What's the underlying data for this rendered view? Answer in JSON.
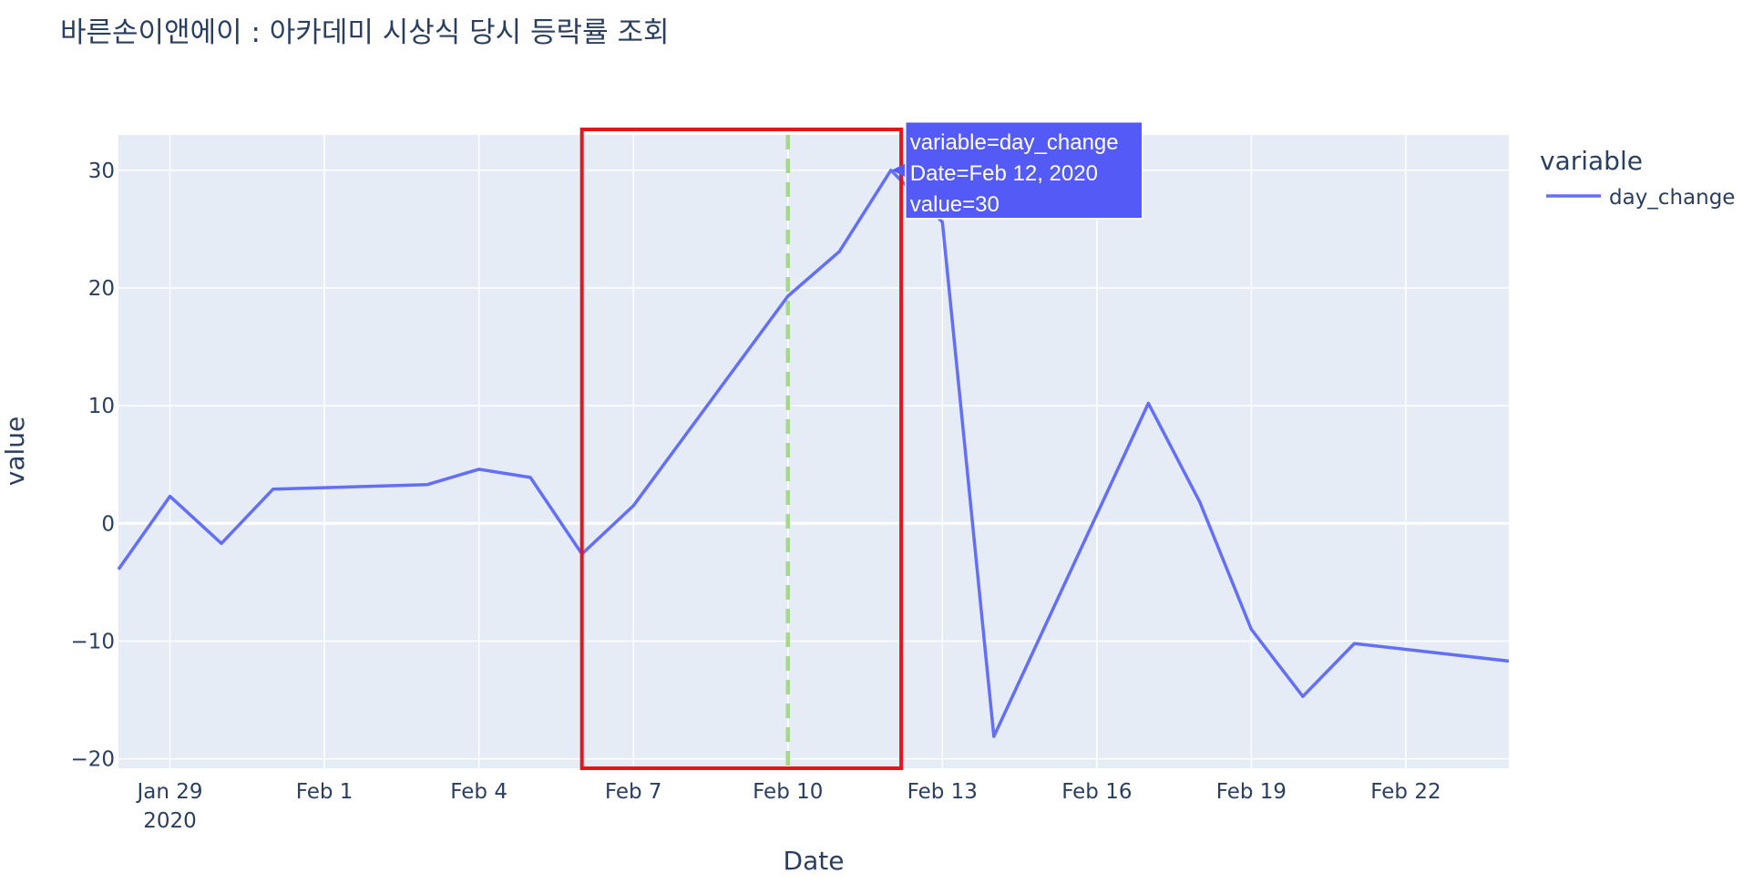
{
  "chart_data": {
    "type": "line",
    "title": "바른손이앤에이 : 아카데미 시상식 당시 등락률 조회",
    "xlabel": "Date",
    "ylabel": "value",
    "x_tick_labels": [
      "Jan 29",
      "Feb 1",
      "Feb 4",
      "Feb 7",
      "Feb 10",
      "Feb 13",
      "Feb 16",
      "Feb 19",
      "Feb 22"
    ],
    "x_tick_year": "2020",
    "x_range": [
      "2020-01-28",
      "2020-02-24"
    ],
    "y_ticks": [
      -20,
      -10,
      0,
      10,
      20,
      30
    ],
    "y_tick_labels": [
      "−20",
      "−10",
      "0",
      "10",
      "20",
      "30"
    ],
    "ylim": [
      -20.8,
      33
    ],
    "grid": true,
    "legend": {
      "title": "variable",
      "position": "right"
    },
    "series": [
      {
        "name": "day_change",
        "color": "#636efa",
        "points": [
          {
            "x": "2020-01-28",
            "y": -3.9
          },
          {
            "x": "2020-01-29",
            "y": 2.3
          },
          {
            "x": "2020-01-30",
            "y": -1.7
          },
          {
            "x": "2020-01-31",
            "y": 2.9
          },
          {
            "x": "2020-02-03",
            "y": 3.3
          },
          {
            "x": "2020-02-04",
            "y": 4.6
          },
          {
            "x": "2020-02-05",
            "y": 3.9
          },
          {
            "x": "2020-02-06",
            "y": -2.6
          },
          {
            "x": "2020-02-07",
            "y": 1.5
          },
          {
            "x": "2020-02-10",
            "y": 19.3
          },
          {
            "x": "2020-02-11",
            "y": 23.1
          },
          {
            "x": "2020-02-12",
            "y": 30
          },
          {
            "x": "2020-02-13",
            "y": 25.6
          },
          {
            "x": "2020-02-14",
            "y": -18.1
          },
          {
            "x": "2020-02-17",
            "y": 10.2
          },
          {
            "x": "2020-02-18",
            "y": 1.8
          },
          {
            "x": "2020-02-19",
            "y": -9
          },
          {
            "x": "2020-02-20",
            "y": -14.7
          },
          {
            "x": "2020-02-21",
            "y": -10.2
          },
          {
            "x": "2020-02-24",
            "y": -11.7
          }
        ]
      }
    ],
    "annotations": {
      "vertical_line": {
        "x": "2020-02-10",
        "color": "#a6d88a",
        "style": "dashed"
      },
      "highlight_box": {
        "x0": "2020-02-06",
        "x1": "2020-02-12.2",
        "y0": -20.8,
        "y1": 33,
        "color": "#e8141a"
      },
      "hover_label": {
        "x": "2020-02-12",
        "y": 30,
        "lines": [
          "variable=day_change",
          "Date=Feb 12, 2020",
          "value=30"
        ],
        "color": "#535af5"
      }
    }
  }
}
